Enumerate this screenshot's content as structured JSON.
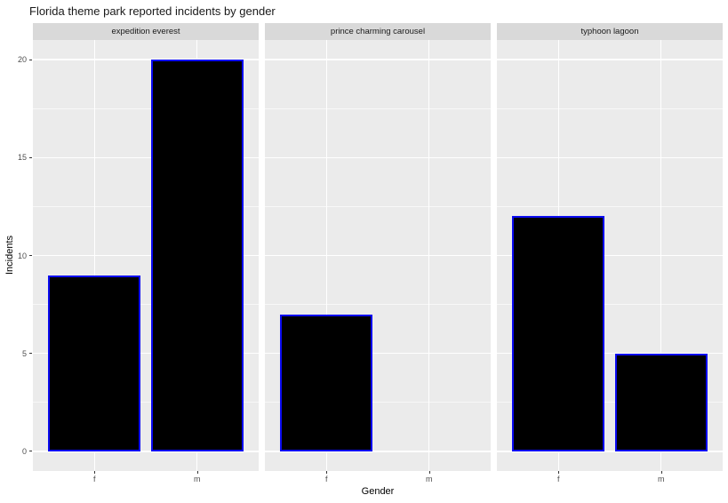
{
  "title": "Florida theme park reported incidents by gender",
  "chart_data": {
    "type": "bar",
    "faceted": true,
    "title": "Florida theme park reported incidents by gender",
    "xlabel": "Gender",
    "ylabel": "Incidents",
    "categories": [
      "f",
      "m"
    ],
    "y_ticks": [
      0,
      5,
      10,
      15,
      20
    ],
    "ylim": [
      -1,
      21
    ],
    "grid": true,
    "legend": "none",
    "facets": [
      {
        "label": "expedition everest",
        "values": [
          9,
          20
        ]
      },
      {
        "label": "prince charming carousel",
        "values": [
          7,
          null
        ]
      },
      {
        "label": "typhoon lagoon",
        "values": [
          12,
          5
        ]
      }
    ],
    "colors": {
      "bar_fill": "#000000",
      "bar_stroke": "#0a0af0",
      "panel_bg": "#ebebeb",
      "strip_bg": "#d9d9d9",
      "grid": "#ffffff",
      "tick": "#333333",
      "tick_label": "#4d4d4d",
      "text": "#000000"
    }
  }
}
